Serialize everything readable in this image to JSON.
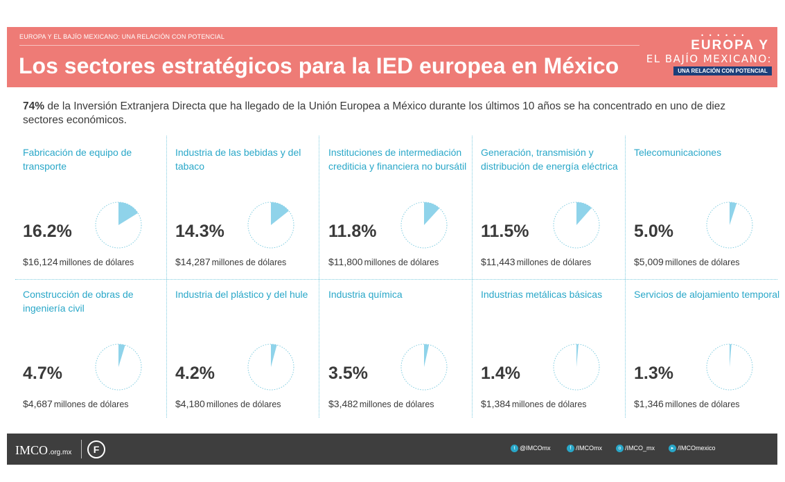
{
  "header": {
    "kicker": "EUROPA Y EL BAJÍO MEXICANO: UNA RELACIÓN CON POTENCIAL",
    "title": "Los sectores estratégicos para la IED europea en México",
    "logo": {
      "line1": "EUROPA Y",
      "line2": "EL BAJÍO MEXICANO:",
      "line3": "UNA RELACIÓN CON POTENCIAL"
    }
  },
  "intro": {
    "highlight": "74%",
    "text": " de la Inversión Extranjera Directa que ha llegado de la Unión Europea a México durante los últimos 10 años se ha concentrado en uno de diez sectores económicos."
  },
  "unit_label": "millones de dólares",
  "colors": {
    "accent": "#29a7c8",
    "header_bg": "#ee7b76",
    "pie_fill": "#8fd3ea",
    "footer_bg": "#3e3e3e"
  },
  "chart_data": {
    "type": "pie",
    "sectors": [
      {
        "name": "Fabricación de equipo de transporte",
        "pct_label": "16.2%",
        "value_pct": 16.2,
        "amount": "$16,124"
      },
      {
        "name": "Industria de las bebidas y del tabaco",
        "pct_label": "14.3%",
        "value_pct": 14.3,
        "amount": "$14,287"
      },
      {
        "name": "Instituciones de intermediación crediticia y financiera no bursátil",
        "pct_label": "11.8%",
        "value_pct": 11.8,
        "amount": "$11,800"
      },
      {
        "name": "Generación, transmisión y distribución de energía eléctrica",
        "pct_label": "11.5%",
        "value_pct": 11.5,
        "amount": "$11,443"
      },
      {
        "name": "Telecomunicaciones",
        "pct_label": "5.0%",
        "value_pct": 5.0,
        "amount": "$5,009"
      },
      {
        "name": "Construcción de obras de ingeniería civil",
        "pct_label": "4.7%",
        "value_pct": 4.7,
        "amount": "$4,687"
      },
      {
        "name": "Industria del plástico y del hule",
        "pct_label": "4.2%",
        "value_pct": 4.2,
        "amount": "$4,180"
      },
      {
        "name": "Industria química",
        "pct_label": "3.5%",
        "value_pct": 3.5,
        "amount": "$3,482"
      },
      {
        "name": "Industrias metálicas básicas",
        "pct_label": "1.4%",
        "value_pct": 1.4,
        "amount": "$1,384"
      },
      {
        "name": "Servicios de alojamiento temporal",
        "pct_label": "1.3%",
        "value_pct": 1.3,
        "amount": "$1,346"
      }
    ]
  },
  "footer": {
    "brand": "IMCO",
    "brand_url": ".org.mx",
    "fund_icon": "F",
    "social": [
      {
        "icon": "twitter-icon",
        "label": "@IMCOmx"
      },
      {
        "icon": "facebook-icon",
        "label": "/IMCOmx"
      },
      {
        "icon": "instagram-icon",
        "label": "/IMCO_mx"
      },
      {
        "icon": "youtube-icon",
        "label": "/IMCOmexico"
      }
    ]
  }
}
